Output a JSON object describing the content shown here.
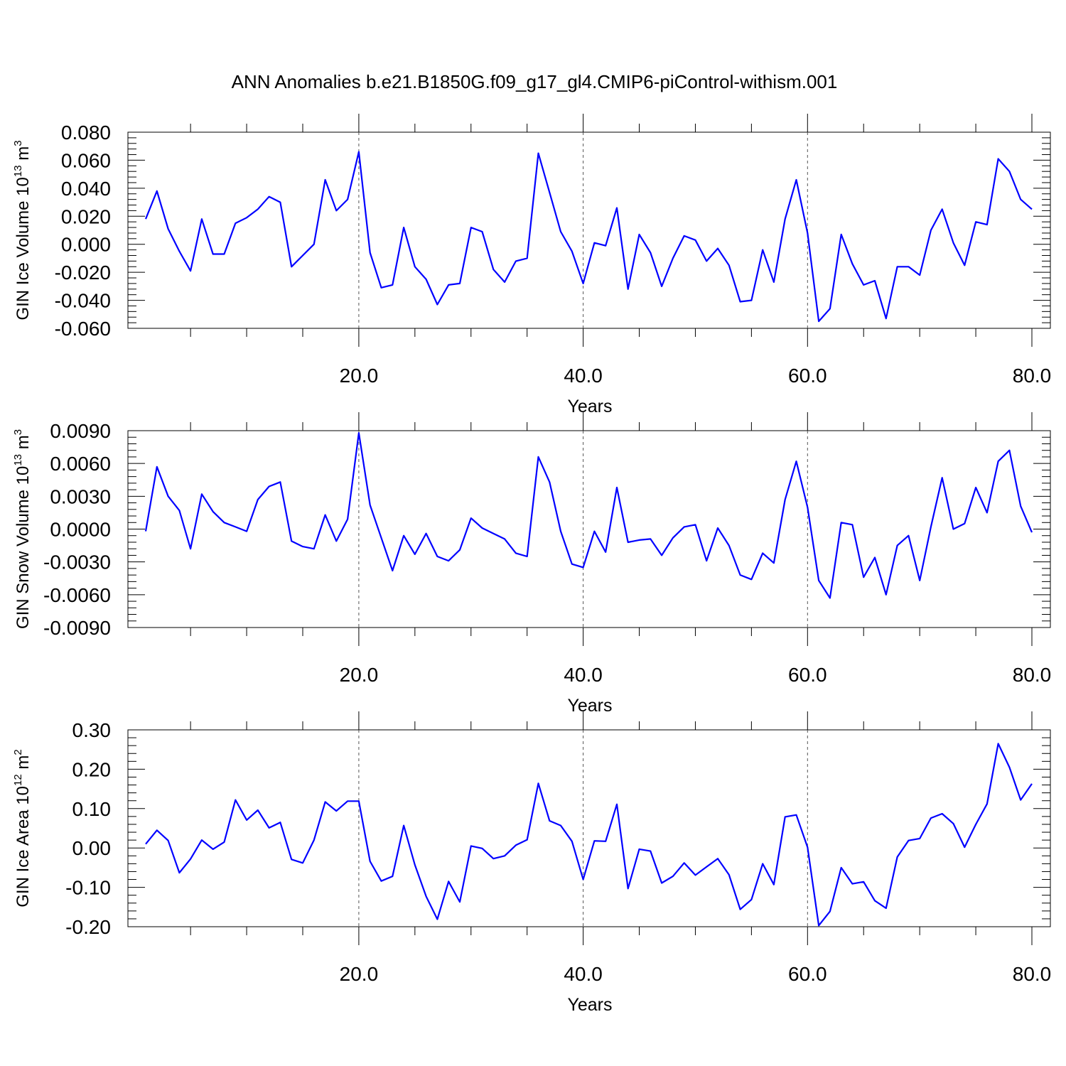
{
  "title": "ANN Anomalies b.e21.B1850G.f09_g17_gl4.CMIP6-piControl-withism.001",
  "colors": {
    "line": "#0000ff",
    "axis": "#000000",
    "ref": "#555555"
  },
  "chart_data": [
    {
      "type": "line",
      "ylabel_main": "GIN Ice Volume 10",
      "ylabel_exp": "13",
      "ylabel_unit": "m",
      "ylabel_unit_exp": "3",
      "xlabel": "Years",
      "xlim": [
        1,
        80
      ],
      "ylim": [
        -0.06,
        0.08
      ],
      "xticks": [
        20,
        40,
        60,
        80
      ],
      "xtick_labels": [
        "20.0",
        "40.0",
        "60.0",
        "80.0"
      ],
      "yticks": [
        -0.06,
        -0.04,
        -0.02,
        0.0,
        0.02,
        0.04,
        0.06,
        0.08
      ],
      "ytick_labels": [
        "-0.060",
        "-0.040",
        "-0.020",
        "0.000",
        "0.020",
        "0.040",
        "0.060",
        "0.080"
      ],
      "ref_x": [
        20,
        40,
        60
      ],
      "series": [
        {
          "values": [
            0.018,
            0.038,
            0.011,
            -0.005,
            -0.019,
            0.018,
            -0.007,
            -0.007,
            0.015,
            0.019,
            0.025,
            0.034,
            0.03,
            -0.016,
            -0.008,
            0.0,
            0.046,
            0.024,
            0.032,
            0.066,
            -0.006,
            -0.031,
            -0.029,
            0.012,
            -0.016,
            -0.025,
            -0.043,
            -0.029,
            -0.028,
            0.012,
            0.009,
            -0.018,
            -0.027,
            -0.012,
            -0.01,
            0.065,
            0.037,
            0.009,
            -0.005,
            -0.028,
            0.001,
            -0.001,
            0.026,
            -0.032,
            0.007,
            -0.006,
            -0.03,
            -0.01,
            0.006,
            0.003,
            -0.012,
            -0.003,
            -0.015,
            -0.041,
            -0.04,
            -0.004,
            -0.027,
            0.018,
            0.046,
            0.008,
            -0.055,
            -0.046,
            0.007,
            -0.014,
            -0.029,
            -0.026,
            -0.053,
            -0.016,
            -0.016,
            -0.022,
            0.01,
            0.025,
            0.001,
            -0.015,
            0.016,
            0.014,
            0.061,
            0.052,
            0.032,
            0.025
          ]
        }
      ]
    },
    {
      "type": "line",
      "ylabel_main": "GIN Snow Volume 10",
      "ylabel_exp": "13",
      "ylabel_unit": "m",
      "ylabel_unit_exp": "3",
      "xlabel": "Years",
      "xlim": [
        1,
        80
      ],
      "ylim": [
        -0.009,
        0.009
      ],
      "xticks": [
        20,
        40,
        60,
        80
      ],
      "xtick_labels": [
        "20.0",
        "40.0",
        "60.0",
        "80.0"
      ],
      "yticks": [
        -0.009,
        -0.006,
        -0.003,
        0.0,
        0.003,
        0.006,
        0.009
      ],
      "ytick_labels": [
        "-0.0090",
        "-0.0060",
        "-0.0030",
        "0.0000",
        "0.0030",
        "0.0060",
        "0.0090"
      ],
      "ref_x": [
        20,
        40,
        60
      ],
      "series": [
        {
          "values": [
            -0.0002,
            0.0057,
            0.003,
            0.0017,
            -0.0018,
            0.0032,
            0.0016,
            0.0006,
            0.0002,
            -0.0002,
            0.0027,
            0.0039,
            0.0043,
            -0.0011,
            -0.0016,
            -0.0018,
            0.0013,
            -0.0011,
            0.0009,
            0.0088,
            0.0022,
            -0.0008,
            -0.0038,
            -0.0006,
            -0.0023,
            -0.0004,
            -0.0025,
            -0.0029,
            -0.0019,
            0.001,
            0.0001,
            -0.0004,
            -0.0009,
            -0.0022,
            -0.0025,
            0.0066,
            0.0043,
            -0.0002,
            -0.0032,
            -0.0035,
            -0.0002,
            -0.0021,
            0.0038,
            -0.0012,
            -0.001,
            -0.0009,
            -0.0024,
            -0.0008,
            0.0002,
            0.0004,
            -0.0029,
            0.0001,
            -0.0015,
            -0.0042,
            -0.0046,
            -0.0022,
            -0.0031,
            0.0027,
            0.0062,
            0.002,
            -0.0047,
            -0.0063,
            0.0006,
            0.0004,
            -0.0044,
            -0.0026,
            -0.006,
            -0.0015,
            -0.0006,
            -0.0047,
            0.0002,
            0.0047,
            0.0,
            0.0005,
            0.0038,
            0.0015,
            0.0062,
            0.0072,
            0.0021,
            -0.0003
          ]
        }
      ]
    },
    {
      "type": "line",
      "ylabel_main": "GIN Ice Area 10",
      "ylabel_exp": "12",
      "ylabel_unit": "m",
      "ylabel_unit_exp": "2",
      "xlabel": "Years",
      "xlim": [
        1,
        80
      ],
      "ylim": [
        -0.2,
        0.3
      ],
      "xticks": [
        20,
        40,
        60,
        80
      ],
      "xtick_labels": [
        "20.0",
        "40.0",
        "60.0",
        "80.0"
      ],
      "yticks": [
        -0.2,
        -0.1,
        0.0,
        0.1,
        0.2,
        0.3
      ],
      "ytick_labels": [
        "-0.20",
        "-0.10",
        "0.00",
        "0.10",
        "0.20",
        "0.30"
      ],
      "ref_x": [
        20,
        40,
        60
      ],
      "series": [
        {
          "values": [
            0.01,
            0.045,
            0.019,
            -0.063,
            -0.028,
            0.02,
            -0.003,
            0.015,
            0.122,
            0.071,
            0.096,
            0.051,
            0.065,
            -0.029,
            -0.038,
            0.02,
            0.117,
            0.094,
            0.119,
            0.119,
            -0.034,
            -0.084,
            -0.072,
            0.057,
            -0.043,
            -0.123,
            -0.181,
            -0.085,
            -0.137,
            0.005,
            -0.001,
            -0.027,
            -0.02,
            0.007,
            0.021,
            0.164,
            0.069,
            0.057,
            0.017,
            -0.08,
            0.018,
            0.017,
            0.111,
            -0.103,
            -0.003,
            -0.008,
            -0.089,
            -0.072,
            -0.038,
            -0.069,
            -0.048,
            -0.027,
            -0.068,
            -0.156,
            -0.131,
            -0.04,
            -0.093,
            0.079,
            0.084,
            0.002,
            -0.197,
            -0.161,
            -0.05,
            -0.091,
            -0.086,
            -0.134,
            -0.153,
            -0.023,
            0.019,
            0.024,
            0.076,
            0.087,
            0.062,
            0.002,
            0.06,
            0.112,
            0.265,
            0.205,
            0.122,
            0.163
          ]
        }
      ]
    }
  ]
}
